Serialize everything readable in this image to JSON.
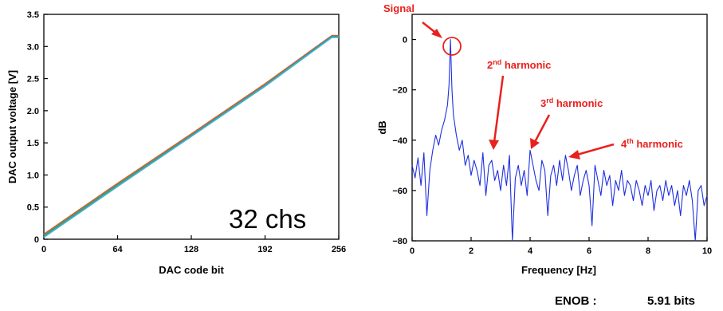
{
  "chart_data": [
    {
      "type": "line",
      "xlabel": "DAC code bit",
      "ylabel": "DAC output voltage [V]",
      "xlim": [
        0,
        256
      ],
      "ylim": [
        0,
        3.5
      ],
      "x_ticks": [
        0,
        64,
        128,
        192,
        256
      ],
      "y_ticks": [
        0,
        0.5,
        1.0,
        1.5,
        2.0,
        2.5,
        3.0,
        3.5
      ],
      "x_tick_labels": [
        "0",
        "64",
        "128",
        "192",
        "256"
      ],
      "y_tick_labels": [
        "0",
        "0.5",
        "1.0",
        "1.5",
        "2.0",
        "2.5",
        "3.0",
        "3.5"
      ],
      "annotation": "32 chs",
      "series": [
        {
          "color": "#e05a2b",
          "x": [
            0,
            64,
            128,
            192,
            250,
            256
          ],
          "y": [
            0.08,
            0.87,
            1.64,
            2.42,
            3.17,
            3.17
          ]
        },
        {
          "color": "#3aa655",
          "x": [
            0,
            64,
            128,
            192,
            250,
            256
          ],
          "y": [
            0.06,
            0.85,
            1.62,
            2.4,
            3.16,
            3.16
          ]
        },
        {
          "color": "#4a7fd0",
          "x": [
            0,
            64,
            128,
            192,
            250,
            256
          ],
          "y": [
            0.04,
            0.83,
            1.61,
            2.39,
            3.15,
            3.15
          ]
        },
        {
          "color": "#43b6c9",
          "x": [
            0,
            64,
            128,
            192,
            250,
            256
          ],
          "y": [
            0.03,
            0.82,
            1.6,
            2.38,
            3.14,
            3.14
          ]
        }
      ]
    },
    {
      "type": "line",
      "xlabel": "Frequency [Hz]",
      "ylabel": "dB",
      "xlim": [
        0,
        10
      ],
      "ylim": [
        -80,
        10
      ],
      "x_ticks": [
        0,
        2,
        4,
        6,
        8,
        10
      ],
      "y_ticks": [
        0,
        -20,
        -40,
        -60,
        -80
      ],
      "x_tick_labels": [
        "0",
        "2",
        "4",
        "6",
        "8",
        "10"
      ],
      "y_tick_labels": [
        "0",
        "−20",
        "−40",
        "−60",
        "−80"
      ],
      "series": [
        {
          "color": "#1f2fe0",
          "x": [
            0.0,
            0.1,
            0.2,
            0.3,
            0.4,
            0.5,
            0.6,
            0.7,
            0.8,
            0.9,
            1.0,
            1.1,
            1.2,
            1.25,
            1.3,
            1.35,
            1.4,
            1.5,
            1.6,
            1.7,
            1.8,
            1.9,
            2.0,
            2.1,
            2.2,
            2.3,
            2.4,
            2.5,
            2.6,
            2.7,
            2.8,
            2.9,
            3.0,
            3.1,
            3.2,
            3.3,
            3.4,
            3.5,
            3.6,
            3.7,
            3.8,
            3.9,
            4.0,
            4.1,
            4.2,
            4.3,
            4.4,
            4.5,
            4.6,
            4.7,
            4.8,
            4.9,
            5.0,
            5.1,
            5.2,
            5.3,
            5.4,
            5.5,
            5.6,
            5.7,
            5.8,
            5.9,
            6.0,
            6.1,
            6.2,
            6.3,
            6.4,
            6.5,
            6.6,
            6.7,
            6.8,
            6.9,
            7.0,
            7.1,
            7.2,
            7.3,
            7.4,
            7.5,
            7.6,
            7.7,
            7.8,
            7.9,
            8.0,
            8.1,
            8.2,
            8.3,
            8.4,
            8.5,
            8.6,
            8.7,
            8.8,
            8.9,
            9.0,
            9.1,
            9.2,
            9.3,
            9.4,
            9.5,
            9.6,
            9.7,
            9.8,
            9.9,
            10.0
          ],
          "y": [
            -50,
            -55,
            -47,
            -58,
            -45,
            -70,
            -52,
            -44,
            -38,
            -42,
            -36,
            -32,
            -26,
            -18,
            0,
            -20,
            -30,
            -38,
            -44,
            -40,
            -50,
            -46,
            -54,
            -48,
            -52,
            -58,
            -45,
            -62,
            -50,
            -48,
            -56,
            -52,
            -60,
            -50,
            -58,
            -46,
            -80,
            -55,
            -50,
            -58,
            -52,
            -62,
            -44,
            -50,
            -56,
            -60,
            -48,
            -52,
            -70,
            -54,
            -50,
            -58,
            -48,
            -56,
            -46,
            -52,
            -60,
            -54,
            -50,
            -62,
            -56,
            -52,
            -58,
            -74,
            -50,
            -56,
            -62,
            -52,
            -58,
            -54,
            -66,
            -56,
            -60,
            -52,
            -62,
            -56,
            -58,
            -64,
            -56,
            -60,
            -66,
            -58,
            -62,
            -56,
            -68,
            -60,
            -58,
            -64,
            -56,
            -62,
            -58,
            -66,
            -60,
            -70,
            -58,
            -62,
            -56,
            -64,
            -80,
            -60,
            -58,
            -66,
            -62
          ]
        }
      ],
      "annotations": [
        {
          "text": "Signal",
          "x": 1.3,
          "y": 0
        },
        {
          "text": "2",
          "sup": "nd",
          "rest": " harmonic",
          "x": 2.6,
          "y": -46
        },
        {
          "text": "3",
          "sup": "rd",
          "rest": " harmonic",
          "x": 3.9,
          "y": -47
        },
        {
          "text": "4",
          "sup": "th",
          "rest": " harmonic",
          "x": 5.2,
          "y": -48
        }
      ]
    }
  ],
  "enob": {
    "label": "ENOB :",
    "value": "5.91 bits"
  }
}
